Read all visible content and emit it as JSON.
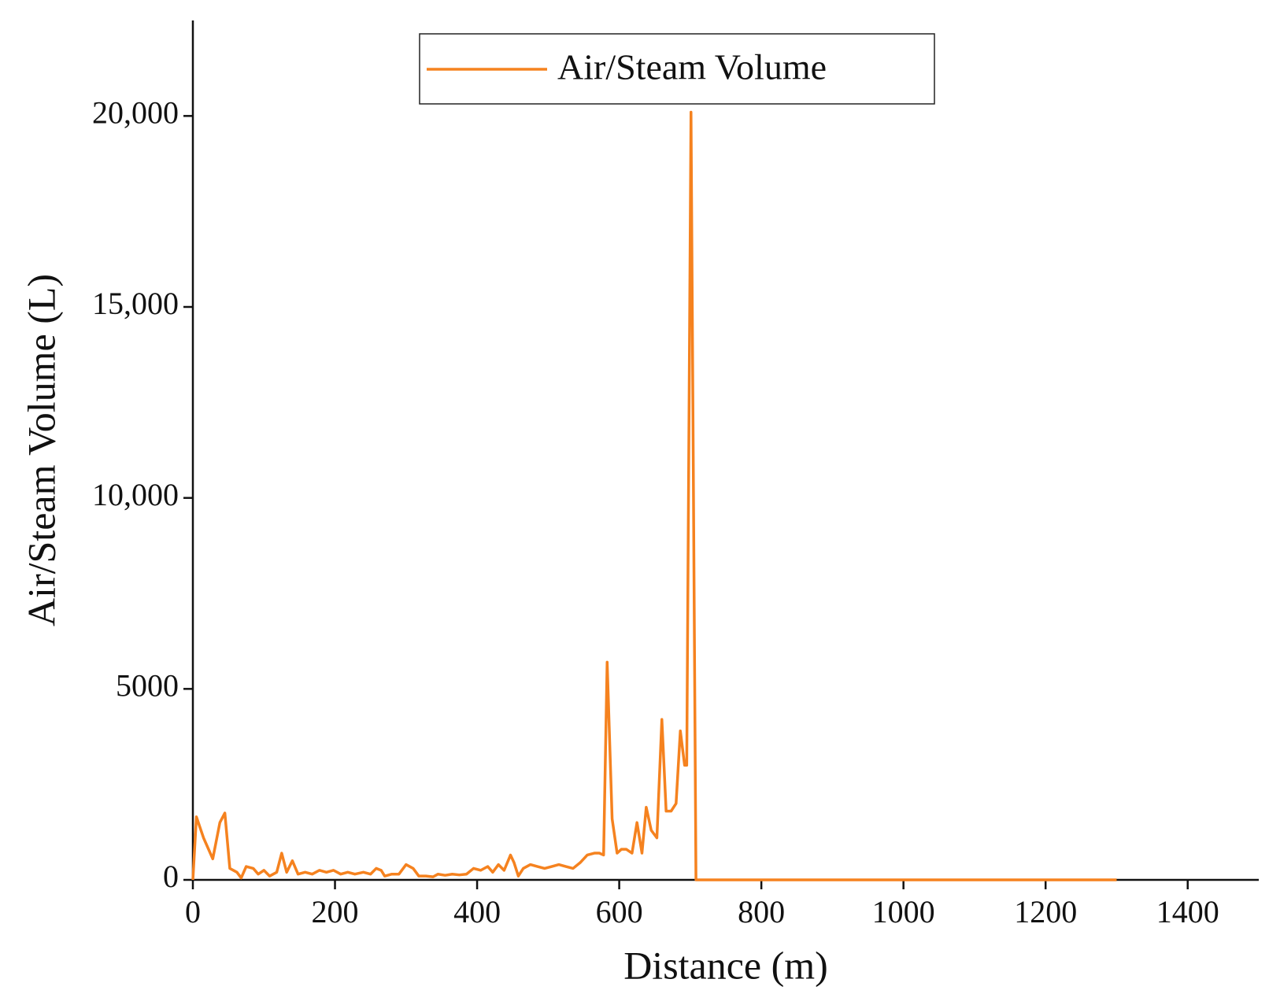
{
  "chart_data": {
    "type": "line",
    "xlabel": "Distance (m)",
    "ylabel": "Air/Steam Volume (L)",
    "xlim": [
      0,
      1500
    ],
    "ylim": [
      0,
      22500
    ],
    "xticks": [
      0,
      200,
      400,
      600,
      800,
      1000,
      1200,
      1400
    ],
    "yticks": [
      0,
      5000,
      {
        "value": 10000,
        "label": "10,000"
      },
      {
        "value": 15000,
        "label": "15,000"
      },
      {
        "value": 20000,
        "label": "20,000"
      }
    ],
    "legend": "top-center",
    "x": [
      0,
      5,
      15,
      28,
      38,
      45,
      52,
      62,
      68,
      75,
      85,
      92,
      100,
      108,
      118,
      125,
      132,
      140,
      148,
      158,
      168,
      178,
      188,
      198,
      208,
      218,
      228,
      240,
      250,
      258,
      265,
      270,
      280,
      290,
      300,
      310,
      318,
      328,
      338,
      345,
      355,
      365,
      375,
      385,
      395,
      405,
      415,
      422,
      430,
      438,
      447,
      452,
      458,
      465,
      475,
      485,
      495,
      505,
      515,
      525,
      535,
      545,
      555,
      565,
      572,
      578,
      583,
      590,
      597,
      603,
      610,
      618,
      625,
      632,
      638,
      645,
      653,
      660,
      666,
      673,
      680,
      686,
      692,
      695,
      701,
      708,
      710,
      800,
      1000,
      1300
    ],
    "series": [
      {
        "name": "Air/Steam Volume",
        "color": "#f5821f",
        "values": [
          0,
          1650,
          1100,
          550,
          1500,
          1750,
          300,
          200,
          50,
          350,
          300,
          150,
          250,
          100,
          200,
          700,
          200,
          500,
          150,
          200,
          150,
          250,
          200,
          250,
          150,
          200,
          150,
          200,
          150,
          300,
          250,
          100,
          150,
          150,
          400,
          300,
          100,
          100,
          80,
          150,
          120,
          150,
          130,
          150,
          300,
          250,
          350,
          200,
          400,
          250,
          650,
          450,
          100,
          300,
          400,
          350,
          300,
          350,
          400,
          350,
          300,
          450,
          650,
          700,
          700,
          650,
          5700,
          1600,
          700,
          800,
          800,
          700,
          1500,
          700,
          1900,
          1300,
          1100,
          4200,
          1800,
          1800,
          2000,
          3900,
          3000,
          3000,
          20100,
          0,
          0,
          0,
          0,
          0
        ]
      }
    ]
  }
}
